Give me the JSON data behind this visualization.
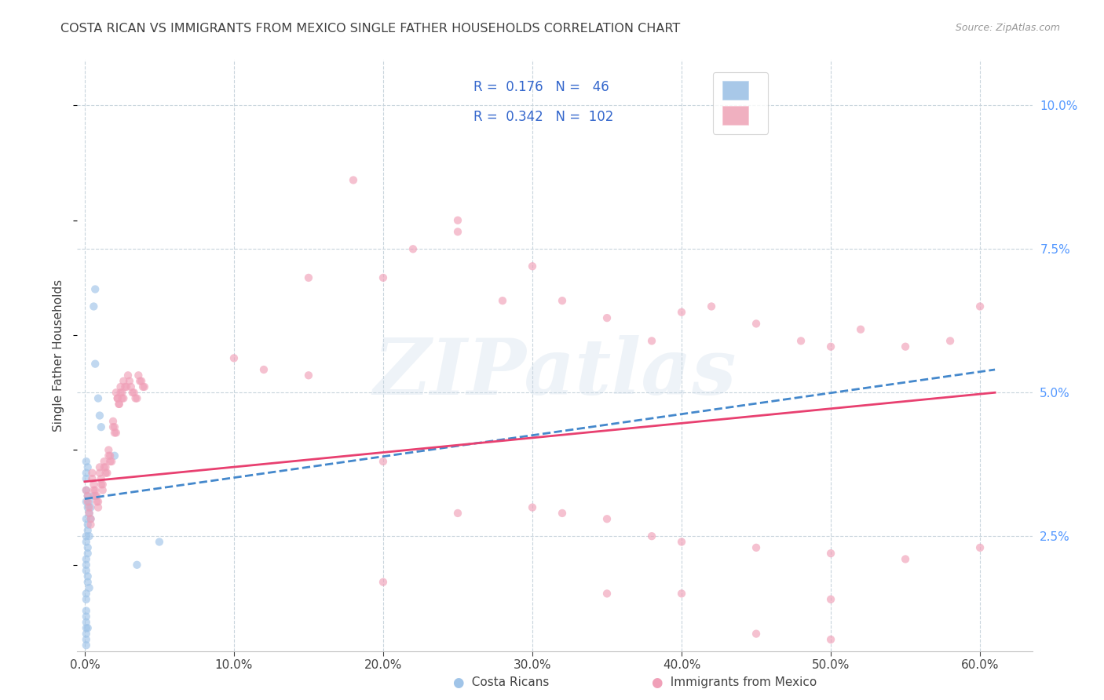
{
  "title": "COSTA RICAN VS IMMIGRANTS FROM MEXICO SINGLE FATHER HOUSEHOLDS CORRELATION CHART",
  "source": "Source: ZipAtlas.com",
  "ylabel": "Single Father Households",
  "xlabel_ticks": [
    "0.0%",
    "10.0%",
    "20.0%",
    "30.0%",
    "40.0%",
    "50.0%",
    "60.0%"
  ],
  "xlabel_vals": [
    0.0,
    0.1,
    0.2,
    0.3,
    0.4,
    0.5,
    0.6
  ],
  "ytick_labels": [
    "2.5%",
    "5.0%",
    "7.5%",
    "10.0%"
  ],
  "ytick_vals": [
    0.025,
    0.05,
    0.075,
    0.1
  ],
  "xlim": [
    -0.005,
    0.635
  ],
  "ylim": [
    0.005,
    0.108
  ],
  "legend_R1": "0.176",
  "legend_N1": "46",
  "legend_R2": "0.342",
  "legend_N2": "102",
  "watermark": "ZIPatlas",
  "scatter_costa_rica": [
    [
      0.001,
      0.033
    ],
    [
      0.001,
      0.031
    ],
    [
      0.002,
      0.032
    ],
    [
      0.002,
      0.03
    ],
    [
      0.003,
      0.031
    ],
    [
      0.003,
      0.029
    ],
    [
      0.004,
      0.03
    ],
    [
      0.004,
      0.028
    ],
    [
      0.001,
      0.028
    ],
    [
      0.002,
      0.027
    ],
    [
      0.002,
      0.026
    ],
    [
      0.003,
      0.025
    ],
    [
      0.001,
      0.025
    ],
    [
      0.001,
      0.024
    ],
    [
      0.002,
      0.023
    ],
    [
      0.002,
      0.022
    ],
    [
      0.001,
      0.021
    ],
    [
      0.001,
      0.02
    ],
    [
      0.001,
      0.019
    ],
    [
      0.002,
      0.018
    ],
    [
      0.002,
      0.017
    ],
    [
      0.003,
      0.016
    ],
    [
      0.001,
      0.015
    ],
    [
      0.001,
      0.014
    ],
    [
      0.001,
      0.012
    ],
    [
      0.001,
      0.011
    ],
    [
      0.001,
      0.01
    ],
    [
      0.001,
      0.009
    ],
    [
      0.001,
      0.008
    ],
    [
      0.002,
      0.009
    ],
    [
      0.001,
      0.007
    ],
    [
      0.001,
      0.006
    ],
    [
      0.006,
      0.065
    ],
    [
      0.007,
      0.068
    ],
    [
      0.007,
      0.055
    ],
    [
      0.009,
      0.049
    ],
    [
      0.01,
      0.046
    ],
    [
      0.011,
      0.044
    ],
    [
      0.02,
      0.039
    ],
    [
      0.035,
      0.02
    ],
    [
      0.05,
      0.024
    ],
    [
      0.006,
      0.032
    ],
    [
      0.001,
      0.036
    ],
    [
      0.001,
      0.035
    ],
    [
      0.001,
      0.038
    ],
    [
      0.002,
      0.037
    ]
  ],
  "scatter_mexico": [
    [
      0.001,
      0.033
    ],
    [
      0.002,
      0.032
    ],
    [
      0.002,
      0.031
    ],
    [
      0.003,
      0.03
    ],
    [
      0.003,
      0.029
    ],
    [
      0.004,
      0.028
    ],
    [
      0.004,
      0.027
    ],
    [
      0.005,
      0.036
    ],
    [
      0.005,
      0.035
    ],
    [
      0.006,
      0.034
    ],
    [
      0.006,
      0.033
    ],
    [
      0.007,
      0.033
    ],
    [
      0.007,
      0.032
    ],
    [
      0.008,
      0.032
    ],
    [
      0.008,
      0.031
    ],
    [
      0.009,
      0.031
    ],
    [
      0.009,
      0.03
    ],
    [
      0.01,
      0.037
    ],
    [
      0.01,
      0.036
    ],
    [
      0.011,
      0.035
    ],
    [
      0.011,
      0.034
    ],
    [
      0.012,
      0.034
    ],
    [
      0.012,
      0.033
    ],
    [
      0.013,
      0.038
    ],
    [
      0.013,
      0.037
    ],
    [
      0.014,
      0.037
    ],
    [
      0.014,
      0.036
    ],
    [
      0.015,
      0.036
    ],
    [
      0.016,
      0.04
    ],
    [
      0.016,
      0.039
    ],
    [
      0.017,
      0.039
    ],
    [
      0.017,
      0.038
    ],
    [
      0.018,
      0.038
    ],
    [
      0.019,
      0.045
    ],
    [
      0.019,
      0.044
    ],
    [
      0.02,
      0.044
    ],
    [
      0.02,
      0.043
    ],
    [
      0.021,
      0.043
    ],
    [
      0.021,
      0.05
    ],
    [
      0.022,
      0.049
    ],
    [
      0.022,
      0.049
    ],
    [
      0.023,
      0.048
    ],
    [
      0.023,
      0.048
    ],
    [
      0.024,
      0.051
    ],
    [
      0.024,
      0.05
    ],
    [
      0.025,
      0.05
    ],
    [
      0.025,
      0.049
    ],
    [
      0.026,
      0.049
    ],
    [
      0.026,
      0.052
    ],
    [
      0.027,
      0.051
    ],
    [
      0.028,
      0.051
    ],
    [
      0.029,
      0.053
    ],
    [
      0.03,
      0.052
    ],
    [
      0.031,
      0.051
    ],
    [
      0.032,
      0.05
    ],
    [
      0.033,
      0.05
    ],
    [
      0.034,
      0.049
    ],
    [
      0.035,
      0.049
    ],
    [
      0.036,
      0.053
    ],
    [
      0.037,
      0.052
    ],
    [
      0.038,
      0.052
    ],
    [
      0.039,
      0.051
    ],
    [
      0.04,
      0.051
    ],
    [
      0.15,
      0.07
    ],
    [
      0.2,
      0.07
    ],
    [
      0.22,
      0.075
    ],
    [
      0.25,
      0.078
    ],
    [
      0.18,
      0.087
    ],
    [
      0.25,
      0.08
    ],
    [
      0.28,
      0.066
    ],
    [
      0.3,
      0.072
    ],
    [
      0.32,
      0.066
    ],
    [
      0.35,
      0.063
    ],
    [
      0.38,
      0.059
    ],
    [
      0.4,
      0.064
    ],
    [
      0.42,
      0.065
    ],
    [
      0.45,
      0.062
    ],
    [
      0.48,
      0.059
    ],
    [
      0.5,
      0.058
    ],
    [
      0.52,
      0.061
    ],
    [
      0.55,
      0.058
    ],
    [
      0.58,
      0.059
    ],
    [
      0.6,
      0.065
    ],
    [
      0.1,
      0.056
    ],
    [
      0.12,
      0.054
    ],
    [
      0.15,
      0.053
    ],
    [
      0.2,
      0.038
    ],
    [
      0.25,
      0.029
    ],
    [
      0.3,
      0.03
    ],
    [
      0.32,
      0.029
    ],
    [
      0.35,
      0.028
    ],
    [
      0.38,
      0.025
    ],
    [
      0.4,
      0.024
    ],
    [
      0.45,
      0.023
    ],
    [
      0.5,
      0.022
    ],
    [
      0.55,
      0.021
    ],
    [
      0.6,
      0.023
    ],
    [
      0.2,
      0.017
    ],
    [
      0.35,
      0.015
    ],
    [
      0.4,
      0.015
    ],
    [
      0.5,
      0.014
    ],
    [
      0.45,
      0.008
    ],
    [
      0.5,
      0.007
    ]
  ],
  "costa_rica_line": {
    "x0": 0.0,
    "x1": 0.61,
    "y0": 0.0315,
    "y1": 0.054
  },
  "mexico_line": {
    "x0": 0.0,
    "x1": 0.61,
    "y0": 0.0345,
    "y1": 0.05
  },
  "grid_color": "#c8d4dc",
  "scatter_alpha": 0.65,
  "scatter_size": 55,
  "bg_color": "#ffffff",
  "title_color": "#404040",
  "axis_color": "#c0c0c0",
  "right_tick_color": "#5599ff",
  "watermark_color": "#c8d8e8",
  "watermark_alpha": 0.3,
  "legend_fontsize": 12,
  "title_fontsize": 11.5,
  "legend_color": "#3366cc"
}
